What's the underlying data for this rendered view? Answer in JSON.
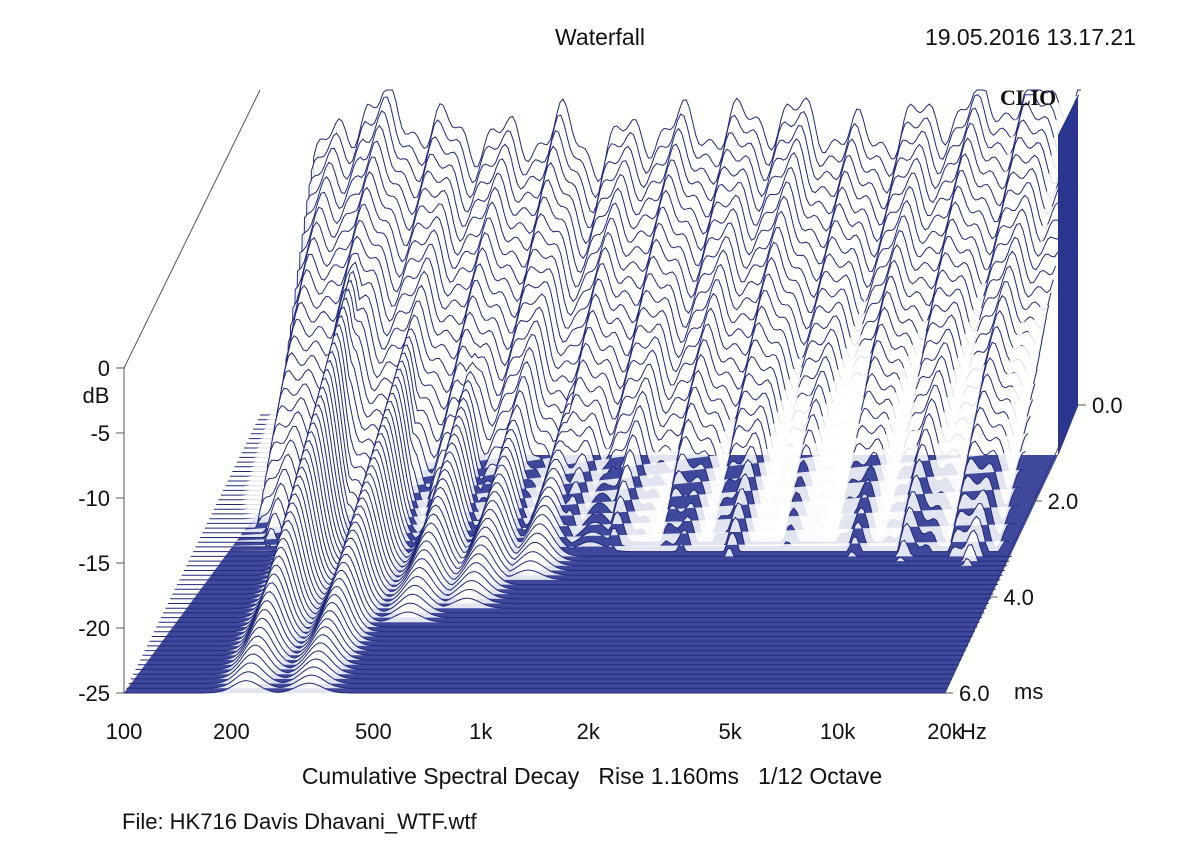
{
  "header": {
    "title": "Waterfall",
    "timestamp": "19.05.2016 13.17.21",
    "logo": "CLIO"
  },
  "footer": {
    "caption": "Cumulative Spectral Decay   Rise 1.160ms   1/12 Octave",
    "file": "File: HK716 Davis Dhavani_WTF.wtf"
  },
  "colors": {
    "trace": "#1f2a7a",
    "fill": "#2a3590"
  },
  "chart_data": {
    "type": "waterfall",
    "title": "Waterfall",
    "x_axis": {
      "unit": "Hz",
      "scale": "log",
      "range": [
        100,
        20000
      ],
      "ticks": [
        {
          "value": 100,
          "label": "100"
        },
        {
          "value": 200,
          "label": "200"
        },
        {
          "value": 500,
          "label": "500"
        },
        {
          "value": 1000,
          "label": "1k"
        },
        {
          "value": 2000,
          "label": "2k"
        },
        {
          "value": 5000,
          "label": "5k"
        },
        {
          "value": 10000,
          "label": "10k"
        },
        {
          "value": 20000,
          "label": "20k"
        }
      ]
    },
    "y_axis": {
      "label": "dB",
      "range": [
        -25,
        0
      ],
      "ticks": [
        {
          "value": 0,
          "label": "0"
        },
        {
          "value": -5,
          "label": "-5"
        },
        {
          "value": -10,
          "label": "-10"
        },
        {
          "value": -15,
          "label": "-15"
        },
        {
          "value": -20,
          "label": "-20"
        },
        {
          "value": -25,
          "label": "-25"
        }
      ]
    },
    "z_axis": {
      "unit": "ms",
      "range": [
        0,
        6
      ],
      "ticks": [
        {
          "value": 0,
          "label": "0.0"
        },
        {
          "value": 2,
          "label": "2.0"
        },
        {
          "value": 4,
          "label": "4.0"
        },
        {
          "value": 6,
          "label": "6.0"
        }
      ]
    },
    "slice_count": 60,
    "initial_response_db": [
      {
        "f": 140,
        "db": -6
      },
      {
        "f": 200,
        "db": -1
      },
      {
        "f": 300,
        "db": -3
      },
      {
        "f": 500,
        "db": -4
      },
      {
        "f": 700,
        "db": -3
      },
      {
        "f": 900,
        "db": -5
      },
      {
        "f": 1200,
        "db": -3
      },
      {
        "f": 2000,
        "db": -3
      },
      {
        "f": 3000,
        "db": -2
      },
      {
        "f": 5000,
        "db": -4
      },
      {
        "f": 8000,
        "db": -2
      },
      {
        "f": 12000,
        "db": -1
      },
      {
        "f": 20000,
        "db": 0
      }
    ],
    "resonances": [
      {
        "f": 220,
        "db": -5,
        "decay_ms": 6.0
      },
      {
        "f": 330,
        "db": -9,
        "decay_ms": 6.0
      },
      {
        "f": 500,
        "db": -10,
        "decay_ms": 4.5
      },
      {
        "f": 700,
        "db": -11,
        "decay_ms": 4.2
      },
      {
        "f": 950,
        "db": -12,
        "decay_ms": 3.6
      },
      {
        "f": 1300,
        "db": -13,
        "decay_ms": 3.0
      },
      {
        "f": 2200,
        "db": -16,
        "decay_ms": 2.6
      },
      {
        "f": 2800,
        "db": -17,
        "decay_ms": 2.0
      },
      {
        "f": 6000,
        "db": -20,
        "decay_ms": 0.8
      },
      {
        "f": 11000,
        "db": -19,
        "decay_ms": 1.2
      }
    ]
  }
}
